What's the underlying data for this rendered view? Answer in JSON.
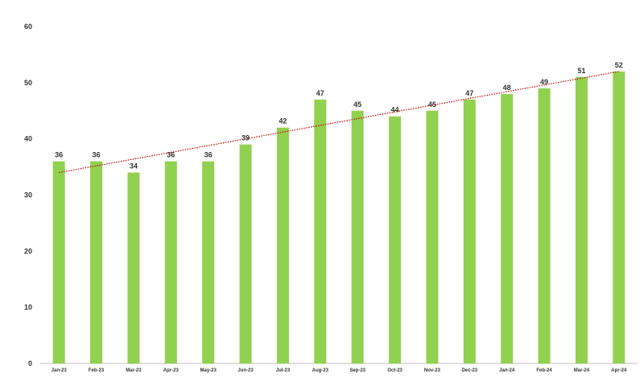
{
  "chart_data": {
    "type": "bar",
    "categories": [
      "Jan-23",
      "Feb-23",
      "Mar-23",
      "Apr-23",
      "May-23",
      "Jun-23",
      "Jul-23",
      "Aug-23",
      "Sep-23",
      "Oct-23",
      "Nov-23",
      "Dec-23",
      "Jan-24",
      "Feb-24",
      "Mar-24",
      "Apr-24"
    ],
    "values": [
      36,
      36,
      34,
      36,
      36,
      39,
      42,
      47,
      45,
      44,
      45,
      47,
      48,
      49,
      51,
      52
    ],
    "title": "",
    "xlabel": "",
    "ylabel": "",
    "ylim": [
      0,
      60
    ],
    "yticks": [
      0,
      10,
      20,
      30,
      40,
      50,
      60
    ],
    "grid": false,
    "legend": "none",
    "data_labels": true,
    "trendline": {
      "type": "linear",
      "style": "dotted",
      "start_value": 34,
      "end_value": 52
    },
    "colors": {
      "bar": "#92d050",
      "trendline": "#c00000",
      "axis": "#bfbfbf",
      "text": "#333333"
    }
  }
}
